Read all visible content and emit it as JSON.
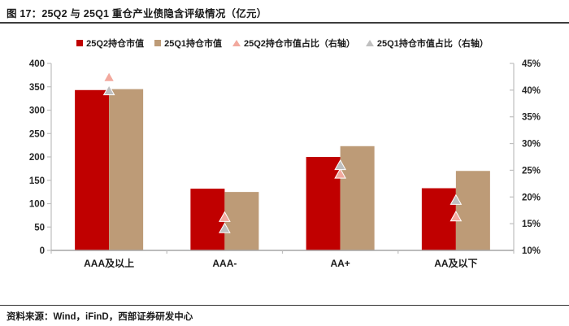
{
  "figure": {
    "title": "图 17：25Q2 与 25Q1 重仓产业债隐含评级情况（亿元）",
    "source_note": "资料来源：Wind，iFinD，西部证券研发中心"
  },
  "colors": {
    "q2_bar": "#c00000",
    "q1_bar": "#bd9b77",
    "q2_marker": "#f2a99e",
    "q1_marker": "#bfbfbf",
    "axis_line": "#bfbfbf",
    "baseline": "#a6a6a6",
    "axis_text": "#262626",
    "divider": "#3d3d3d"
  },
  "legend": [
    {
      "label": "25Q2持仓市值",
      "marker": "square",
      "series_index": 0
    },
    {
      "label": "25Q1持仓市值",
      "marker": "square",
      "series_index": 1
    },
    {
      "label": "25Q2持仓市值占比（右轴）",
      "marker": "triangle",
      "series_index": 2
    },
    {
      "label": "25Q1持仓市值占比（右轴）",
      "marker": "triangle",
      "series_index": 3
    }
  ],
  "chart_data": {
    "type": "bar",
    "title": "图 17：25Q2 与 25Q1 重仓产业债隐含评级情况（亿元）",
    "categories": [
      "AAA及以上",
      "AAA-",
      "AA+",
      "AA及以下"
    ],
    "series": [
      {
        "name": "25Q2持仓市值",
        "kind": "bar",
        "axis": "left",
        "color": "#c00000",
        "values": [
          343,
          132,
          200,
          133
        ]
      },
      {
        "name": "25Q1持仓市值",
        "kind": "bar",
        "axis": "left",
        "color": "#bd9b77",
        "values": [
          345,
          125,
          223,
          170
        ]
      },
      {
        "name": "25Q2持仓市值占比（右轴）",
        "kind": "triangle-marker",
        "axis": "right",
        "color": "#f2a99e",
        "values": [
          42.5,
          16.3,
          24.4,
          16.4
        ]
      },
      {
        "name": "25Q1持仓市值占比（右轴）",
        "kind": "triangle-marker",
        "axis": "right",
        "color": "#bfbfbf",
        "values": [
          40.0,
          14.2,
          26.0,
          19.5
        ]
      }
    ],
    "left_axis": {
      "min": 0,
      "max": 400,
      "step": 50,
      "ticks": [
        "0",
        "50",
        "100",
        "150",
        "200",
        "250",
        "300",
        "350",
        "400"
      ]
    },
    "right_axis": {
      "min": 10,
      "max": 45,
      "step": 5,
      "unit": "%",
      "ticks": [
        "10%",
        "15%",
        "20%",
        "25%",
        "30%",
        "35%",
        "40%",
        "45%"
      ]
    },
    "grid": false,
    "legend_position": "top",
    "xlabel": "",
    "ylabel": ""
  }
}
